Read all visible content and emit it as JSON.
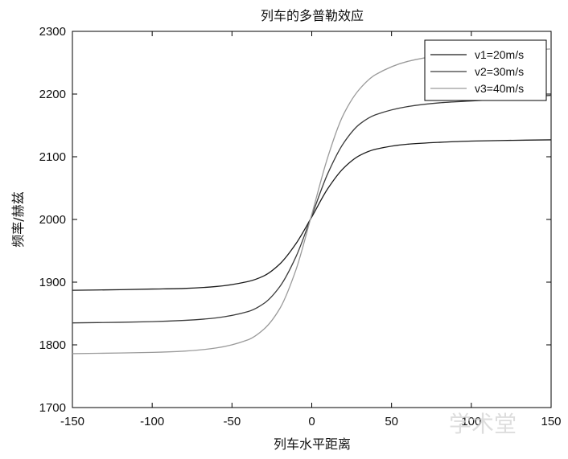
{
  "chart_data": {
    "type": "line",
    "title": "列车的多普勒效应",
    "xlabel": "列车水平距离",
    "ylabel": "频率/赫兹",
    "xlim": [
      -150,
      150
    ],
    "ylim": [
      1700,
      2300
    ],
    "xticks": [
      -150,
      -100,
      -50,
      0,
      50,
      100,
      150
    ],
    "yticks": [
      1700,
      1800,
      1900,
      2000,
      2100,
      2200,
      2300
    ],
    "grid": false,
    "legend_position": "top-right",
    "series": [
      {
        "name": "v1=20m/s",
        "color": "#1a1a1a",
        "x": [
          -150,
          -120,
          -100,
          -80,
          -60,
          -40,
          -30,
          -20,
          -10,
          0,
          10,
          20,
          30,
          40,
          60,
          80,
          100,
          120,
          150
        ],
        "y": [
          1887,
          1888,
          1889,
          1890,
          1893,
          1901,
          1910,
          1929,
          1961,
          2004,
          2049,
          2082,
          2102,
          2112,
          2120,
          2123,
          2125,
          2126,
          2127
        ]
      },
      {
        "name": "v2=30m/s",
        "color": "#3a3a3a",
        "x": [
          -150,
          -120,
          -100,
          -80,
          -60,
          -40,
          -30,
          -20,
          -10,
          0,
          10,
          20,
          30,
          40,
          60,
          80,
          100,
          120,
          150
        ],
        "y": [
          1835,
          1836,
          1837,
          1839,
          1843,
          1853,
          1866,
          1893,
          1940,
          2006,
          2073,
          2122,
          2152,
          2167,
          2180,
          2186,
          2189,
          2192,
          2198
        ]
      },
      {
        "name": "v3=40m/s",
        "color": "#9a9a9a",
        "x": [
          -150,
          -120,
          -100,
          -80,
          -60,
          -40,
          -30,
          -20,
          -10,
          0,
          10,
          20,
          30,
          40,
          60,
          80,
          100,
          120,
          150
        ],
        "y": [
          1786,
          1787,
          1788,
          1790,
          1795,
          1808,
          1825,
          1858,
          1919,
          2008,
          2099,
          2168,
          2208,
          2231,
          2252,
          2261,
          2265,
          2268,
          2272
        ]
      }
    ]
  },
  "watermark": "学术堂"
}
